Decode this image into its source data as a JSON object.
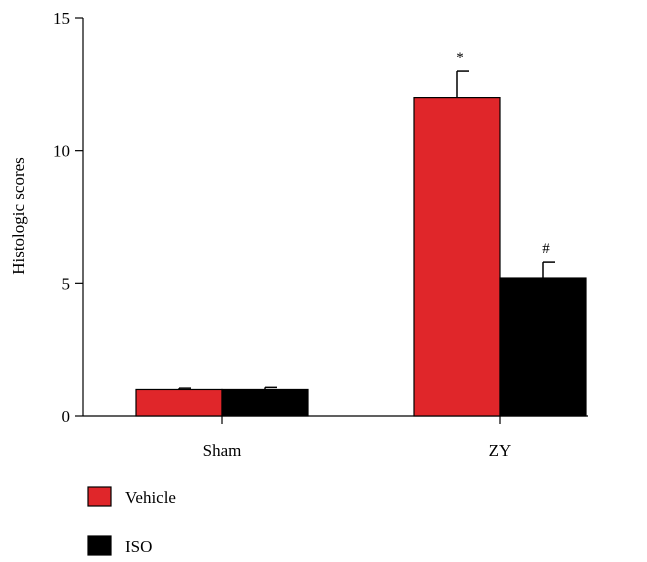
{
  "chart_data": {
    "type": "bar",
    "title": "",
    "xlabel": "",
    "ylabel": "Histologic scores",
    "ylim": [
      0,
      15
    ],
    "yticks": [
      0,
      5,
      10,
      15
    ],
    "categories": [
      "Sham",
      "ZY"
    ],
    "series": [
      {
        "name": "Vehicle",
        "color": "#e0262a",
        "values": [
          1.0,
          12.0
        ],
        "errors": [
          0.05,
          1.0
        ],
        "annotations": [
          "",
          "*"
        ]
      },
      {
        "name": "ISO",
        "color": "#000000",
        "values": [
          1.0,
          5.2
        ],
        "errors": [
          0.08,
          0.6
        ],
        "annotations": [
          "",
          "#"
        ]
      }
    ],
    "grid": false,
    "legend_position": "bottom-left"
  }
}
